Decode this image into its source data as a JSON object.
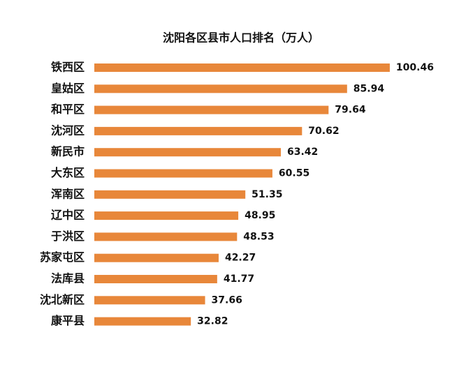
{
  "chart_data": {
    "type": "bar",
    "orientation": "horizontal",
    "title": "沈阳各区县市人口排名（万人）",
    "categories": [
      "铁西区",
      "皇姑区",
      "和平区",
      "沈河区",
      "新民市",
      "大东区",
      "浑南区",
      "辽中区",
      "于洪区",
      "苏家屯区",
      "法库县",
      "沈北新区",
      "康平县"
    ],
    "values": [
      100.46,
      85.94,
      79.64,
      70.62,
      63.42,
      60.55,
      51.35,
      48.95,
      48.53,
      42.27,
      41.77,
      37.66,
      32.82
    ],
    "color": "#e8873a"
  }
}
